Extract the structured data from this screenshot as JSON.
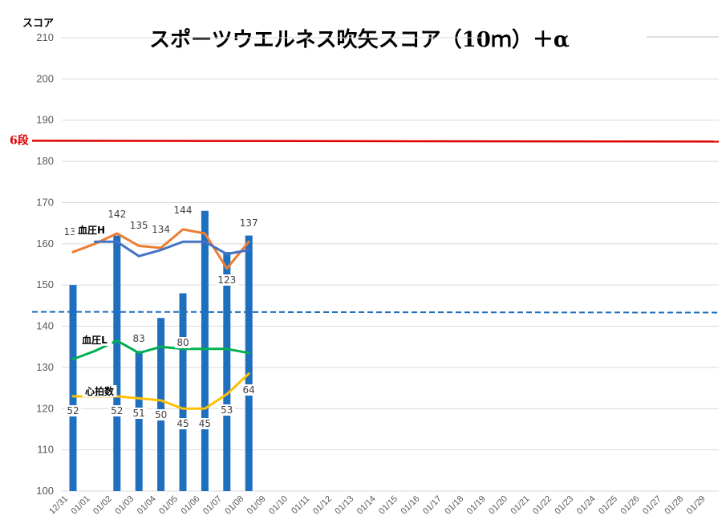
{
  "chart_data": {
    "type": "bar",
    "title": "スポーツウエルネス吹矢スコア（10ｍ）＋α",
    "ylabel": "スコア",
    "ylim": [
      100,
      210
    ],
    "yticks": [
      100,
      110,
      120,
      130,
      140,
      150,
      160,
      170,
      180,
      190,
      200,
      210
    ],
    "grid": true,
    "categories": [
      "12/31",
      "01/01",
      "01/02",
      "01/03",
      "01/04",
      "01/05",
      "01/06",
      "01/07",
      "01/08",
      "01/09",
      "01/10",
      "01/11",
      "01/12",
      "01/13",
      "01/14",
      "01/15",
      "01/16",
      "01/17",
      "01/18",
      "01/19",
      "01/20",
      "01/21",
      "01/22",
      "01/23",
      "01/24",
      "01/25",
      "01/26",
      "01/27",
      "01/28",
      "01/29"
    ],
    "bars": {
      "color": "#1f6fbf",
      "values": [
        150,
        null,
        162,
        134,
        142,
        148,
        168,
        158,
        162
      ]
    },
    "lines": [
      {
        "name": "血圧H",
        "color": "#ed7d31",
        "values": [
          158,
          160,
          162.5,
          159.5,
          159,
          163.5,
          162.5,
          154,
          160.5
        ]
      },
      {
        "name": "",
        "color": "#4472c4",
        "values": [
          null,
          160.5,
          160.5,
          157,
          158.5,
          160.5,
          160.5,
          157.5,
          158.5
        ]
      },
      {
        "name": "血圧L",
        "color": "#00b050",
        "values": [
          132,
          134,
          136.5,
          133.5,
          135,
          134.5,
          134.5,
          134.5,
          133.5
        ]
      },
      {
        "name": "心拍数",
        "color": "#ffc000",
        "values": [
          123,
          123,
          123,
          122.5,
          122,
          120,
          120,
          123.5,
          128.5
        ]
      }
    ],
    "data_labels": {
      "血圧H": [
        "132",
        "",
        "142",
        "135",
        "134",
        "144",
        "",
        "123",
        "137"
      ],
      "血圧L": [
        "",
        "",
        "",
        "83",
        "",
        "80",
        "",
        "",
        ""
      ],
      "心拍数": [
        "52",
        "",
        "52",
        "51",
        "50",
        "45",
        "45",
        "53",
        "64"
      ]
    },
    "reference_lines": [
      {
        "label": "6段",
        "value": 185,
        "color": "#e00000",
        "style": "solid"
      },
      {
        "label": "",
        "value": 143.5,
        "color": "#1f6fbf",
        "style": "dashed"
      }
    ]
  }
}
